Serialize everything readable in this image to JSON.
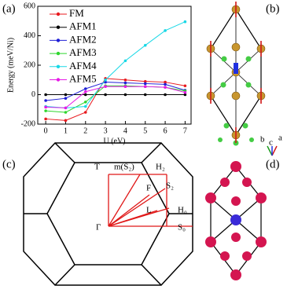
{
  "chart_data": {
    "type": "line",
    "xlabel": "U (eV)",
    "ylabel": "Energy (meV/Ni)",
    "x": [
      0,
      1,
      2,
      3,
      4,
      5,
      6,
      7
    ],
    "xlim": [
      -0.4,
      7.3
    ],
    "xticks": [
      0,
      1,
      2,
      3,
      4,
      5,
      6,
      7
    ],
    "ylim": [
      -200,
      600
    ],
    "yticks": [
      -200,
      0,
      200,
      400,
      600
    ],
    "legend": "upper left",
    "series": [
      {
        "name": "FM",
        "color": "#e8191e",
        "values": [
          -165,
          -175,
          -120,
          110,
          100,
          90,
          85,
          60
        ]
      },
      {
        "name": "AFM1",
        "color": "#000000",
        "values": [
          0,
          0,
          0,
          0,
          0,
          0,
          0,
          0
        ]
      },
      {
        "name": "AFM2",
        "color": "#1f1fd6",
        "values": [
          -40,
          -25,
          40,
          85,
          80,
          75,
          70,
          30
        ]
      },
      {
        "name": "AFM3",
        "color": "#2fd62f",
        "values": [
          -110,
          -120,
          -50,
          60,
          60,
          55,
          50,
          25
        ]
      },
      {
        "name": "AFM4",
        "color": "#19d8e6",
        "values": [
          -80,
          -90,
          -80,
          100,
          230,
          335,
          435,
          495
        ]
      },
      {
        "name": "AFM5",
        "color": "#e619e6",
        "values": [
          -85,
          -90,
          20,
          55,
          55,
          55,
          50,
          15
        ]
      }
    ]
  },
  "panels": [
    "(a)",
    "(b)",
    "(c)",
    "(d)"
  ],
  "crystal_axes": [
    "b",
    "c",
    "a"
  ],
  "brillouin_zone": {
    "points": [
      "T",
      "m(S₂)",
      "H₂",
      "F",
      "S₂",
      "L",
      "H₀",
      "Γ",
      "S₀"
    ]
  }
}
